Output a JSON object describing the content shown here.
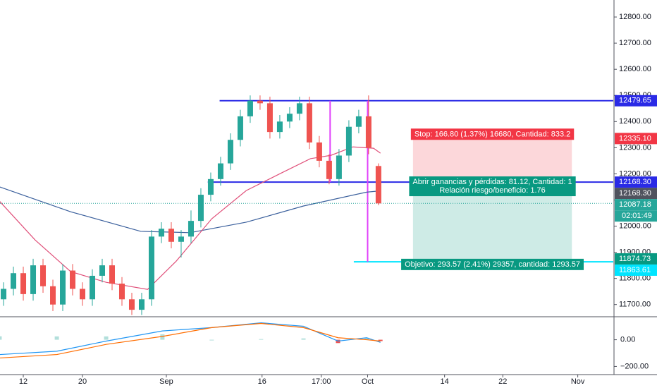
{
  "chart_data": {
    "type": "candlestick",
    "up_color": "#26a69a",
    "down_color": "#ef5350",
    "x": [
      -2,
      -1,
      0,
      1,
      2,
      3,
      4,
      5,
      6,
      7,
      8,
      9,
      10,
      11,
      12,
      13,
      14,
      15,
      16,
      17,
      18,
      19,
      20,
      21,
      22,
      23,
      24,
      25,
      26,
      27,
      28,
      29,
      30,
      31,
      32,
      33,
      34,
      35,
      36
    ],
    "open": [
      11720,
      11760,
      11820,
      11740,
      11850,
      11770,
      11700,
      11830,
      11760,
      11720,
      11810,
      11850,
      11780,
      11720,
      11680,
      11720,
      11960,
      11990,
      11940,
      11960,
      12020,
      12120,
      12180,
      12240,
      12330,
      12420,
      12480,
      12470,
      12360,
      12400,
      12430,
      12470,
      12320,
      12250,
      12180,
      12270,
      12380,
      12420,
      12230
    ],
    "high": [
      11785,
      11845,
      11845,
      11875,
      11875,
      11795,
      11855,
      11855,
      11785,
      11835,
      11875,
      11875,
      11805,
      11745,
      11745,
      11985,
      12015,
      12015,
      11985,
      12060,
      12145,
      12205,
      12265,
      12355,
      12445,
      12500,
      12500,
      12495,
      12425,
      12455,
      12495,
      12495,
      12345,
      12275,
      12295,
      12405,
      12445,
      12500,
      12240
    ],
    "low": [
      11695,
      11735,
      11715,
      11715,
      11745,
      11675,
      11675,
      11735,
      11695,
      11695,
      11785,
      11755,
      11695,
      11660,
      11660,
      11695,
      11935,
      11915,
      11880,
      11935,
      11995,
      12095,
      12155,
      12215,
      12305,
      12395,
      12445,
      12335,
      12335,
      12375,
      12405,
      12295,
      12225,
      12160,
      12155,
      12245,
      12355,
      12275,
      12080
    ],
    "close": [
      11760,
      11820,
      11740,
      11850,
      11770,
      11700,
      11830,
      11760,
      11720,
      11810,
      11850,
      11780,
      11720,
      11680,
      11720,
      11960,
      11990,
      11940,
      11960,
      12020,
      12120,
      12180,
      12240,
      12330,
      12420,
      12480,
      12470,
      12360,
      12400,
      12430,
      12470,
      12320,
      12250,
      12180,
      12270,
      12380,
      12420,
      12300,
      12087
    ],
    "xlim": [
      -2.36,
      59.8
    ],
    "xticks": [
      {
        "value": 0,
        "label": "12"
      },
      {
        "value": 6,
        "label": "20"
      },
      {
        "value": 14.5,
        "label": "Sep"
      },
      {
        "value": 24.2,
        "label": "16"
      },
      {
        "value": 30.2,
        "label": "17:00"
      },
      {
        "value": 34.9,
        "label": "Oct"
      },
      {
        "value": 42.7,
        "label": "14"
      },
      {
        "value": 48.6,
        "label": "22"
      },
      {
        "value": 56.2,
        "label": "Nov"
      }
    ],
    "ylim": [
      11656,
      12865
    ],
    "yticks": [
      {
        "value": 11700,
        "label": "11700.00"
      },
      {
        "value": 11800,
        "label": "11800.00"
      },
      {
        "value": 11900,
        "label": "11900.00"
      },
      {
        "value": 12000,
        "label": "12000.00"
      },
      {
        "value": 12100,
        "label": "12100.00"
      },
      {
        "value": 12200,
        "label": "12200.00"
      },
      {
        "value": 12300,
        "label": "12300.00"
      },
      {
        "value": 12400,
        "label": "12400.00"
      },
      {
        "value": 12500,
        "label": "12500.00"
      },
      {
        "value": 12600,
        "label": "12600.00"
      },
      {
        "value": 12700,
        "label": "12700.00"
      },
      {
        "value": 12800,
        "label": "12800.00"
      }
    ],
    "grid": false,
    "lines": [
      {
        "color": "#3a5f9c",
        "x": [
          -2.4,
          4.8,
          11.9,
          16.9,
          22.6,
          28.4,
          34.8,
          36.2
        ],
        "values": [
          12150,
          12055,
          11980,
          11975,
          12015,
          12077,
          12130,
          12135
        ]
      },
      {
        "color": "#e0507a",
        "x": [
          -2.4,
          1.2,
          4.8,
          8.4,
          12.6,
          15.5,
          19.1,
          22.6,
          26.2,
          29.1,
          31.2,
          33.4,
          35.5,
          36.2
        ],
        "values": [
          12095,
          11947,
          11826,
          11785,
          11758,
          11866,
          12028,
          12136,
          12204,
          12258,
          12271,
          12303,
          12298,
          12279
        ]
      }
    ],
    "hlines": [
      {
        "value": 12479.65,
        "x_start": 19.9,
        "color": "#2a2ae6"
      },
      {
        "value": 12168.3,
        "x_start": 18.7,
        "color": "#2a2ae6"
      },
      {
        "value": 11863.61,
        "x_start": 33.5,
        "color": "#00e5ff"
      }
    ],
    "vlines": [
      {
        "x": 31.1,
        "from": 12479.65,
        "to": 12168.3,
        "color": "#e040fb"
      },
      {
        "x": 34.9,
        "from": 12479.65,
        "to": 11863.61,
        "color": "#e040fb"
      }
    ],
    "last_price": {
      "value": 12087.18,
      "color": "#26a69a"
    },
    "position": {
      "x_start": 39.5,
      "x_end": 55.6,
      "entry": 12168.3,
      "stop": 12335.1,
      "target": 11874.73,
      "stop_text": "Stop: 166.80 (1.37%) 16680, Cantidad: 833.2",
      "entry_text": "Abrir ganancias y pérdidas: 81.12, Cantidad: 1",
      "ratio_text": "Relación riesgo/beneficio: 1.76",
      "target_text": "Objetivo: 293.57 (2.41%) 29357, cantidad: 1293.57"
    },
    "tags": [
      {
        "value": 12479.65,
        "color": "#2a2ae6"
      },
      {
        "value": 12335.1,
        "label": "12335.10",
        "color": "#f23645"
      },
      {
        "value": 12168.3,
        "label": "12168.30",
        "color": "#2a2ae6"
      },
      {
        "value": 12168.3,
        "label": "12168.30",
        "color": "#50535e"
      },
      {
        "value": 12087.18,
        "color": "#26a69a",
        "countdown": "02:01:49"
      },
      {
        "value": 11874.73,
        "color": "#089981"
      },
      {
        "value": 11863.61,
        "color": "#00e5ff"
      }
    ],
    "macd": {
      "x": [
        -2.4,
        3.4,
        8.4,
        14.1,
        19.1,
        24.1,
        28.4,
        31.9,
        34.8,
        36.2
      ],
      "macd": [
        -111,
        -86,
        -10,
        66,
        91,
        127,
        101,
        -10,
        15,
        -20
      ],
      "signal": [
        -137,
        -111,
        -35,
        25,
        91,
        122,
        91,
        15,
        0,
        -10
      ],
      "histogram": [
        26,
        25,
        25,
        41,
        0,
        5,
        10,
        -25,
        15,
        -10
      ],
      "macd_color": "#2196f3",
      "signal_color": "#ff6d00",
      "ylim": [
        -256,
        167
      ],
      "yticks": [
        {
          "value": 0,
          "label": "0.00"
        },
        {
          "value": -200,
          "label": "−200.00"
        }
      ]
    }
  }
}
